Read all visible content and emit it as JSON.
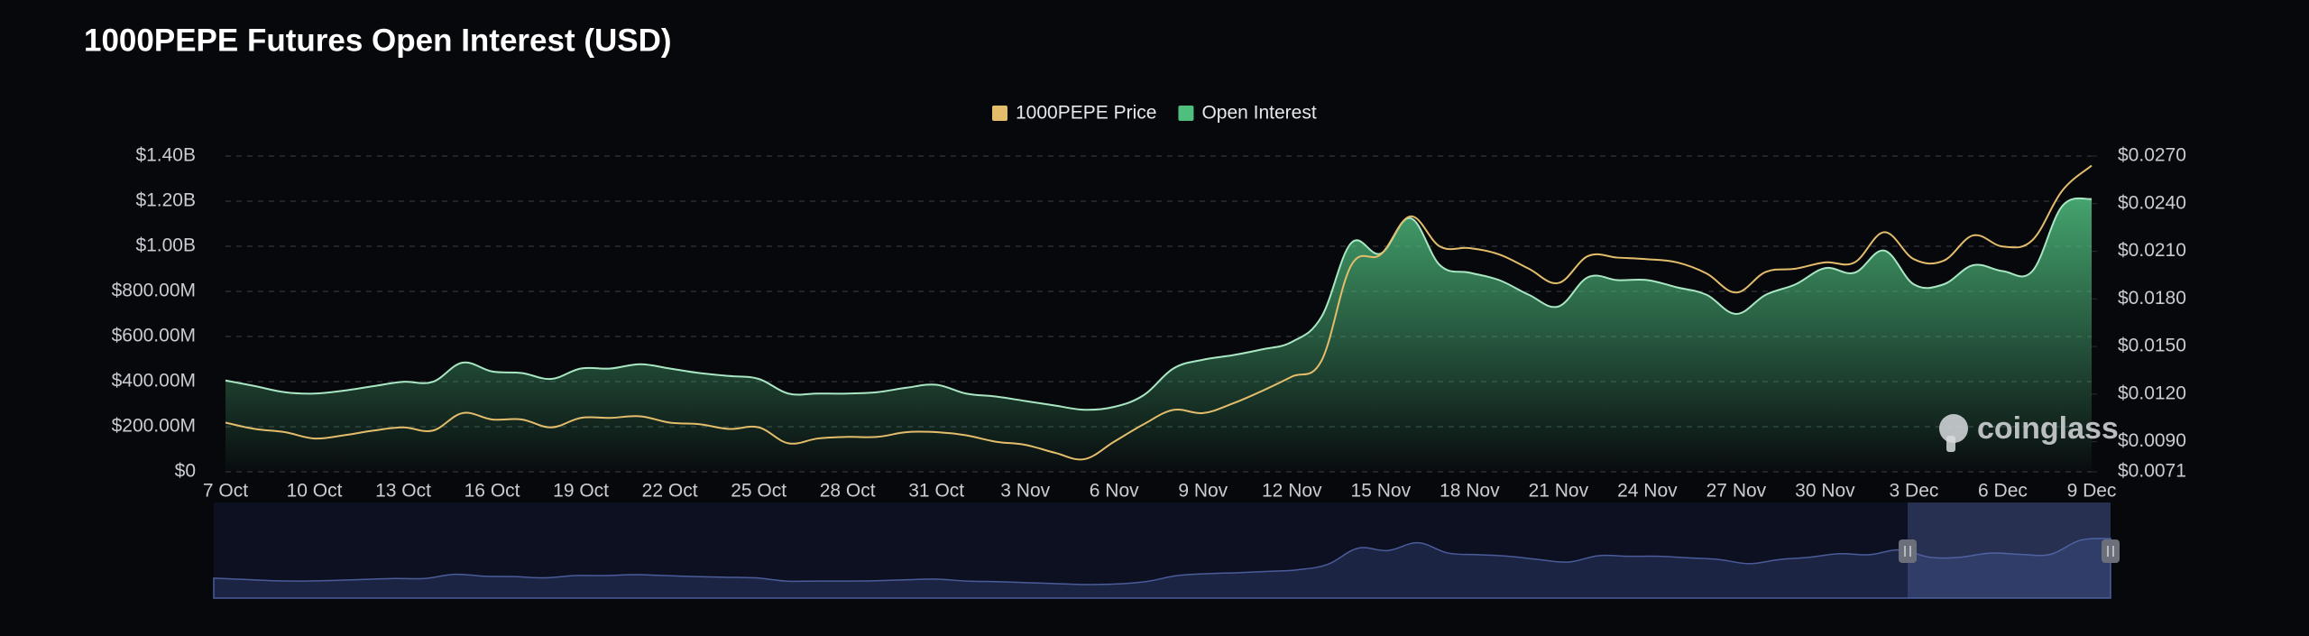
{
  "chart_data": {
    "type": "line",
    "title": "1000PEPE Futures Open Interest (USD)",
    "watermark": "coinglass",
    "categories": [
      "7 Oct",
      null,
      null,
      "10 Oct",
      null,
      null,
      "13 Oct",
      null,
      null,
      "16 Oct",
      null,
      null,
      "19 Oct",
      null,
      null,
      "22 Oct",
      null,
      null,
      "25 Oct",
      null,
      null,
      "28 Oct",
      null,
      null,
      "31 Oct",
      null,
      null,
      "3 Nov",
      null,
      null,
      "6 Nov",
      null,
      null,
      "9 Nov",
      null,
      null,
      "12 Nov",
      null,
      null,
      "15 Nov",
      null,
      null,
      "18 Nov",
      null,
      null,
      "21 Nov",
      null,
      null,
      "24 Nov",
      null,
      null,
      "27 Nov",
      null,
      null,
      "30 Nov",
      null,
      null,
      "3 Dec",
      null,
      null,
      "6 Dec",
      null,
      null,
      "9 Dec"
    ],
    "series": [
      {
        "name": "1000PEPE Price",
        "color": "#e3bd6b",
        "axis": "y2",
        "fill": false,
        "values": [
          0.0102,
          0.0098,
          0.0096,
          0.0092,
          0.0094,
          0.0097,
          0.0099,
          0.0097,
          0.0108,
          0.0104,
          0.0104,
          0.0099,
          0.0105,
          0.0105,
          0.0106,
          0.0102,
          0.0101,
          0.0098,
          0.0099,
          0.0089,
          0.0092,
          0.0093,
          0.0093,
          0.0096,
          0.0096,
          0.0094,
          0.009,
          0.0088,
          0.0083,
          0.0079,
          0.009,
          0.0101,
          0.011,
          0.0108,
          0.0114,
          0.0122,
          0.0131,
          0.0141,
          0.0201,
          0.0208,
          0.0232,
          0.0213,
          0.0212,
          0.0208,
          0.0199,
          0.019,
          0.0207,
          0.0206,
          0.0205,
          0.0203,
          0.0196,
          0.0184,
          0.0197,
          0.0199,
          0.0203,
          0.0203,
          0.0222,
          0.0205,
          0.0204,
          0.022,
          0.0213,
          0.0217,
          0.0248,
          0.0264
        ]
      },
      {
        "name": "Open Interest",
        "color": "#4fbf7f",
        "fill": true,
        "values": [
          405000000,
          380000000,
          353000000,
          347000000,
          360000000,
          380000000,
          399000000,
          399000000,
          484000000,
          445000000,
          438000000,
          412000000,
          458000000,
          458000000,
          477000000,
          458000000,
          438000000,
          425000000,
          412000000,
          347000000,
          347000000,
          347000000,
          353000000,
          373000000,
          386000000,
          347000000,
          334000000,
          314000000,
          294000000,
          275000000,
          288000000,
          340000000,
          458000000,
          497000000,
          517000000,
          543000000,
          576000000,
          687000000,
          1014000000,
          968000000,
          1125000000,
          916000000,
          883000000,
          850000000,
          785000000,
          733000000,
          863000000,
          850000000,
          850000000,
          818000000,
          785000000,
          700000000,
          785000000,
          831000000,
          903000000,
          883000000,
          981000000,
          831000000,
          831000000,
          916000000,
          890000000,
          890000000,
          1177000000,
          1210000000
        ]
      }
    ],
    "ylim": [
      0,
      1400000000
    ],
    "yticks": [
      {
        "value": 0,
        "label": "$0"
      },
      {
        "value": 200000000,
        "label": "$200.00M"
      },
      {
        "value": 400000000,
        "label": "$400.00M"
      },
      {
        "value": 600000000,
        "label": "$600.00M"
      },
      {
        "value": 800000000,
        "label": "$800.00M"
      },
      {
        "value": 1000000000,
        "label": "$1.00B"
      },
      {
        "value": 1200000000,
        "label": "$1.20B"
      },
      {
        "value": 1400000000,
        "label": "$1.40B"
      }
    ],
    "y2lim": [
      0.0071,
      0.027
    ],
    "y2ticks": [
      {
        "value": 0.0071,
        "label": "$0.0071"
      },
      {
        "value": 0.009,
        "label": "$0.0090"
      },
      {
        "value": 0.012,
        "label": "$0.0120"
      },
      {
        "value": 0.015,
        "label": "$0.0150"
      },
      {
        "value": 0.018,
        "label": "$0.0180"
      },
      {
        "value": 0.021,
        "label": "$0.0210"
      },
      {
        "value": 0.024,
        "label": "$0.0240"
      },
      {
        "value": 0.027,
        "label": "$0.0270"
      }
    ],
    "grid": true,
    "legend": "top"
  }
}
